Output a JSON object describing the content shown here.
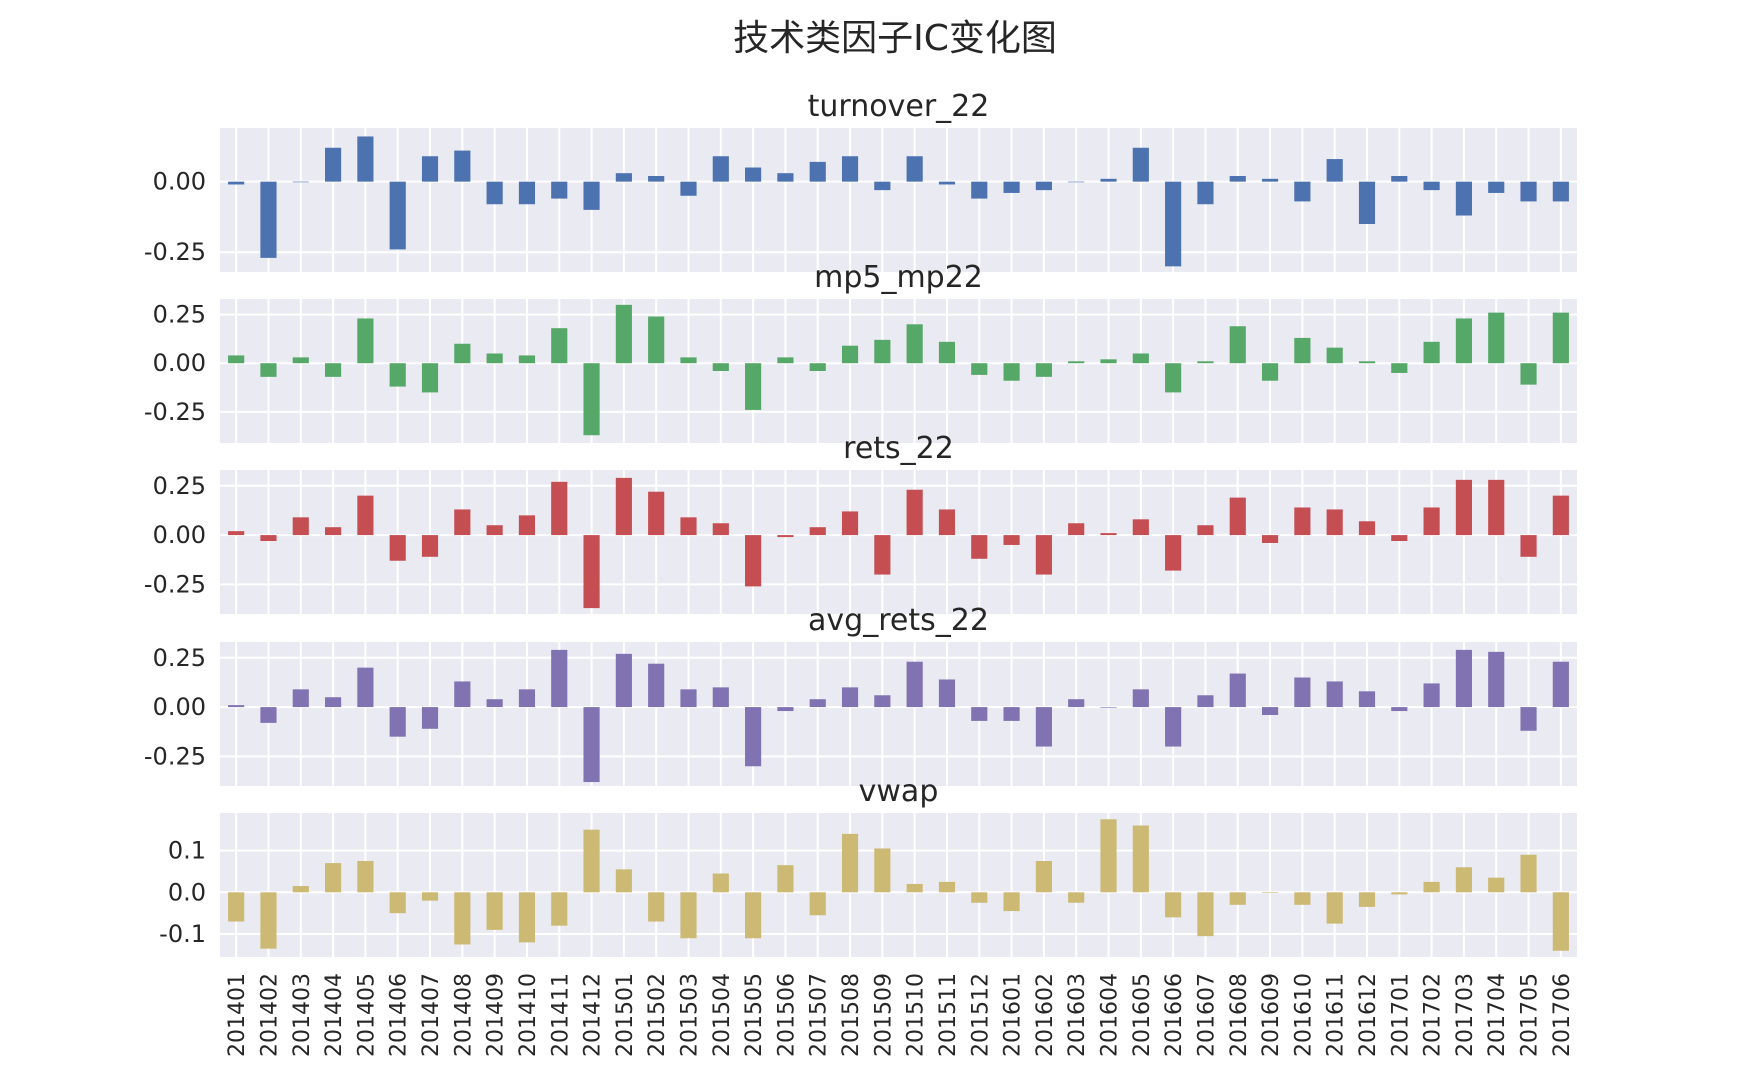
{
  "chart_data": {
    "type": "bar",
    "title": "技术类因子IC变化图",
    "categories": [
      "201401",
      "201402",
      "201403",
      "201404",
      "201405",
      "201406",
      "201407",
      "201408",
      "201409",
      "201410",
      "201411",
      "201412",
      "201501",
      "201502",
      "201503",
      "201504",
      "201505",
      "201506",
      "201507",
      "201508",
      "201509",
      "201510",
      "201511",
      "201512",
      "201601",
      "201602",
      "201603",
      "201604",
      "201605",
      "201606",
      "201607",
      "201608",
      "201609",
      "201610",
      "201611",
      "201612",
      "201701",
      "201702",
      "201703",
      "201704",
      "201705",
      "201706"
    ],
    "subplots": [
      {
        "name": "turnover_22",
        "color": "#4c72b0",
        "ylim": [
          -0.32,
          0.19
        ],
        "yticks": [
          0.0,
          -0.25
        ],
        "ytick_labels": [
          "0.00",
          "-0.25"
        ],
        "values": [
          -0.01,
          -0.27,
          0.0,
          0.12,
          0.16,
          -0.24,
          0.09,
          0.11,
          -0.08,
          -0.08,
          -0.06,
          -0.1,
          0.03,
          0.02,
          -0.05,
          0.09,
          0.05,
          0.03,
          0.07,
          0.09,
          -0.03,
          0.09,
          -0.01,
          -0.06,
          -0.04,
          -0.03,
          0.0,
          0.01,
          0.12,
          -0.3,
          -0.08,
          0.02,
          0.01,
          -0.07,
          0.08,
          -0.15,
          0.02,
          -0.03,
          -0.12,
          -0.04,
          -0.07,
          -0.07
        ]
      },
      {
        "name": "mp5_mp22",
        "color": "#55a868",
        "ylim": [
          -0.41,
          0.33
        ],
        "yticks": [
          0.25,
          0.0,
          -0.25
        ],
        "ytick_labels": [
          "0.25",
          "0.00",
          "-0.25"
        ],
        "values": [
          0.04,
          -0.07,
          0.03,
          -0.07,
          0.23,
          -0.12,
          -0.15,
          0.1,
          0.05,
          0.04,
          0.18,
          -0.37,
          0.3,
          0.24,
          0.03,
          -0.04,
          -0.24,
          0.03,
          -0.04,
          0.09,
          0.12,
          0.2,
          0.11,
          -0.06,
          -0.09,
          -0.07,
          0.01,
          0.02,
          0.05,
          -0.15,
          0.01,
          0.19,
          -0.09,
          0.13,
          0.08,
          0.01,
          -0.05,
          0.11,
          0.23,
          0.26,
          -0.11,
          0.26
        ]
      },
      {
        "name": "rets_22",
        "color": "#c44e52",
        "ylim": [
          -0.4,
          0.33
        ],
        "yticks": [
          0.25,
          0.0,
          -0.25
        ],
        "ytick_labels": [
          "0.25",
          "0.00",
          "-0.25"
        ],
        "values": [
          0.02,
          -0.03,
          0.09,
          0.04,
          0.2,
          -0.13,
          -0.11,
          0.13,
          0.05,
          0.1,
          0.27,
          -0.37,
          0.29,
          0.22,
          0.09,
          0.06,
          -0.26,
          -0.01,
          0.04,
          0.12,
          -0.2,
          0.23,
          0.13,
          -0.12,
          -0.05,
          -0.2,
          0.06,
          0.01,
          0.08,
          -0.18,
          0.05,
          0.19,
          -0.04,
          0.14,
          0.13,
          0.07,
          -0.03,
          0.14,
          0.28,
          0.28,
          -0.11,
          0.2
        ]
      },
      {
        "name": "avg_rets_22",
        "color": "#8172b2",
        "ylim": [
          -0.4,
          0.33
        ],
        "yticks": [
          0.25,
          0.0,
          -0.25
        ],
        "ytick_labels": [
          "0.25",
          "0.00",
          "-0.25"
        ],
        "values": [
          0.01,
          -0.08,
          0.09,
          0.05,
          0.2,
          -0.15,
          -0.11,
          0.13,
          0.04,
          0.09,
          0.29,
          -0.38,
          0.27,
          0.22,
          0.09,
          0.1,
          -0.3,
          -0.02,
          0.04,
          0.1,
          0.06,
          0.23,
          0.14,
          -0.07,
          -0.07,
          -0.2,
          0.04,
          0.0,
          0.09,
          -0.2,
          0.06,
          0.17,
          -0.04,
          0.15,
          0.13,
          0.08,
          -0.02,
          0.12,
          0.29,
          0.28,
          -0.12,
          0.23
        ]
      },
      {
        "name": "vwap",
        "color": "#ccb974",
        "ylim": [
          -0.155,
          0.19
        ],
        "yticks": [
          0.1,
          0.0,
          -0.1
        ],
        "ytick_labels": [
          "0.1",
          "0.0",
          "-0.1"
        ],
        "values": [
          -0.07,
          -0.135,
          0.015,
          0.07,
          0.075,
          -0.05,
          -0.02,
          -0.125,
          -0.09,
          -0.12,
          -0.08,
          0.15,
          0.055,
          -0.07,
          -0.11,
          0.045,
          -0.11,
          0.065,
          -0.055,
          0.14,
          0.105,
          0.02,
          0.025,
          -0.025,
          -0.045,
          0.075,
          -0.025,
          0.175,
          0.16,
          -0.06,
          -0.105,
          -0.03,
          0.0,
          -0.03,
          -0.075,
          -0.035,
          -0.005,
          0.025,
          0.06,
          0.035,
          0.09,
          -0.14
        ]
      }
    ],
    "grid": true,
    "legend": "none"
  }
}
